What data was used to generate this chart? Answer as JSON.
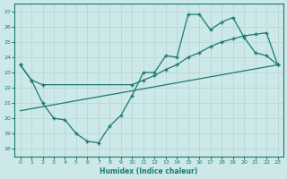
{
  "bg_color": "#cce8e8",
  "grid_color": "#b8d8d8",
  "line_color": "#1a7a6e",
  "xlabel": "Humidex (Indice chaleur)",
  "xlim": [
    -0.5,
    23.5
  ],
  "ylim": [
    17.5,
    27.5
  ],
  "xticks": [
    0,
    1,
    2,
    3,
    4,
    5,
    6,
    7,
    8,
    9,
    10,
    11,
    12,
    13,
    14,
    15,
    16,
    17,
    18,
    19,
    20,
    21,
    22,
    23
  ],
  "yticks": [
    18,
    19,
    20,
    21,
    22,
    23,
    24,
    25,
    26,
    27
  ],
  "line1": {
    "x": [
      0,
      23
    ],
    "y": [
      20.5,
      23.5
    ]
  },
  "line2": {
    "x": [
      0,
      1,
      2,
      10,
      11,
      12,
      13,
      14,
      15,
      16,
      17,
      18,
      19,
      20,
      21,
      22,
      23
    ],
    "y": [
      23.5,
      22.5,
      22.2,
      22.2,
      22.5,
      22.8,
      23.2,
      23.5,
      24.0,
      24.3,
      24.7,
      25.0,
      25.2,
      25.4,
      25.5,
      25.6,
      23.5
    ]
  },
  "line3": {
    "x": [
      0,
      1,
      2,
      3,
      4,
      5,
      6,
      7,
      8,
      9,
      10,
      11,
      12,
      13,
      14,
      15,
      16,
      17,
      18,
      19,
      20,
      21,
      22,
      23
    ],
    "y": [
      23.5,
      22.5,
      21.0,
      20.0,
      19.9,
      19.0,
      18.5,
      18.4,
      19.5,
      20.2,
      21.5,
      23.0,
      23.0,
      24.1,
      24.0,
      26.8,
      26.8,
      25.8,
      26.3,
      26.6,
      25.3,
      24.3,
      24.1,
      23.5
    ]
  }
}
